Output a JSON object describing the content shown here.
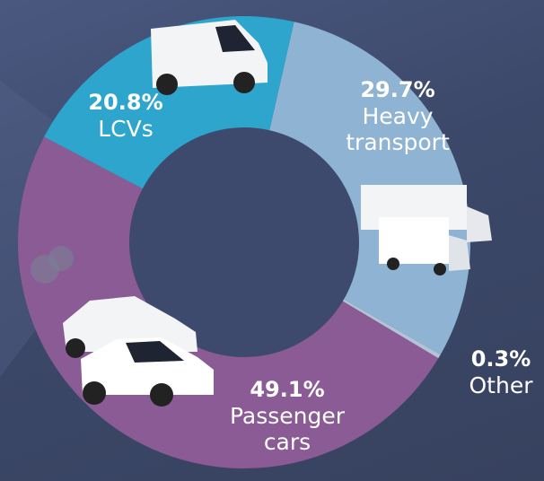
{
  "chart_data": {
    "type": "pie",
    "donut": true,
    "categories": [
      "LCVs",
      "Heavy transport",
      "Other",
      "Passenger cars"
    ],
    "values": [
      20.8,
      29.7,
      0.3,
      49.1
    ],
    "value_labels": [
      "20.8%",
      "29.7%",
      "0.3%",
      "49.1%"
    ],
    "colors": [
      "#2ea5cc",
      "#8fb3d3",
      "#b4c4d6",
      "#8a5b94"
    ]
  }
}
